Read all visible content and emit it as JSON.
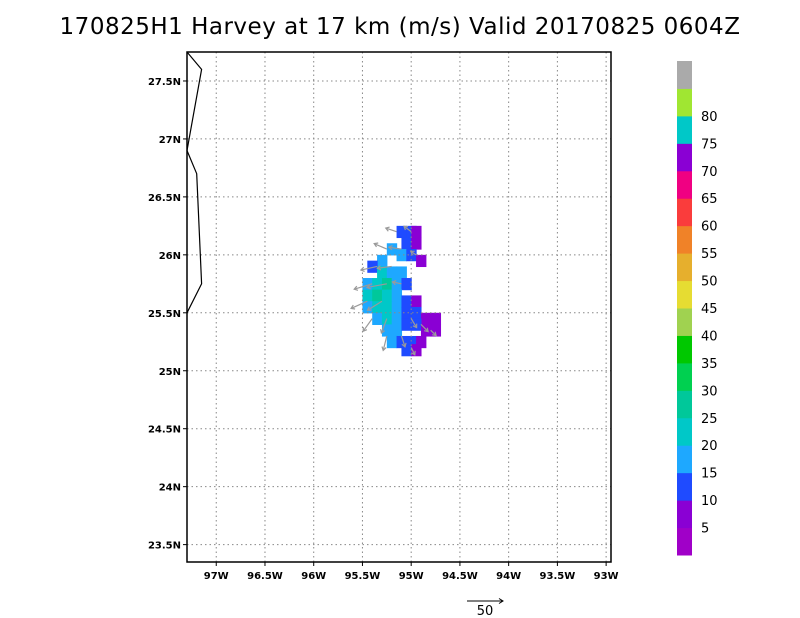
{
  "title": "170825H1 Harvey at 17 km (m/s) Valid 20170825 0604Z",
  "map": {
    "lon_range": [
      -97.3,
      -92.95
    ],
    "lat_range": [
      23.35,
      27.75
    ],
    "lat_labels": [
      "27.5N",
      "27N",
      "26.5N",
      "26N",
      "25.5N",
      "25N",
      "24.5N",
      "24N",
      "23.5N"
    ],
    "lat_values": [
      27.5,
      27.0,
      26.5,
      26.0,
      25.5,
      25.0,
      24.5,
      24.0,
      23.5
    ],
    "lon_labels": [
      "97W",
      "96.5W",
      "96W",
      "95.5W",
      "95W",
      "94.5W",
      "94W",
      "93.5W",
      "93W"
    ],
    "lon_values": [
      -97.0,
      -96.5,
      -96.0,
      -95.5,
      -95.0,
      -94.5,
      -94.0,
      -93.5,
      -93.0
    ],
    "coastline": [
      [
        -97.3,
        27.75
      ],
      [
        -97.15,
        27.6
      ],
      [
        -97.3,
        26.9
      ],
      [
        -97.2,
        26.7
      ],
      [
        -97.15,
        25.75
      ],
      [
        -97.3,
        25.5
      ]
    ],
    "grid": "dotted",
    "wind_cells": [
      {
        "lon": -95.1,
        "lat": 26.2,
        "color": "#1f4bff"
      },
      {
        "lon": -95.0,
        "lat": 26.2,
        "color": "#1f4bff"
      },
      {
        "lon": -94.95,
        "lat": 26.2,
        "color": "#8a00d4"
      },
      {
        "lon": -95.05,
        "lat": 26.1,
        "color": "#1f4bff"
      },
      {
        "lon": -94.95,
        "lat": 26.1,
        "color": "#8a00d4"
      },
      {
        "lon": -95.2,
        "lat": 26.05,
        "color": "#1ea8ff"
      },
      {
        "lon": -95.1,
        "lat": 26.0,
        "color": "#1ea8ff"
      },
      {
        "lon": -95.0,
        "lat": 26.0,
        "color": "#1f4bff"
      },
      {
        "lon": -94.9,
        "lat": 25.95,
        "color": "#8a00d4"
      },
      {
        "lon": -95.3,
        "lat": 25.95,
        "color": "#1ea8ff"
      },
      {
        "lon": -95.4,
        "lat": 25.9,
        "color": "#1f4bff"
      },
      {
        "lon": -95.3,
        "lat": 25.85,
        "color": "#00c8c8"
      },
      {
        "lon": -95.2,
        "lat": 25.85,
        "color": "#1ea8ff"
      },
      {
        "lon": -95.1,
        "lat": 25.85,
        "color": "#1ea8ff"
      },
      {
        "lon": -95.45,
        "lat": 25.75,
        "color": "#1ea8ff"
      },
      {
        "lon": -95.35,
        "lat": 25.75,
        "color": "#00c8c8"
      },
      {
        "lon": -95.25,
        "lat": 25.75,
        "color": "#00c89a"
      },
      {
        "lon": -95.15,
        "lat": 25.75,
        "color": "#1ea8ff"
      },
      {
        "lon": -95.05,
        "lat": 25.75,
        "color": "#1f4bff"
      },
      {
        "lon": -95.45,
        "lat": 25.65,
        "color": "#00c8c8"
      },
      {
        "lon": -95.35,
        "lat": 25.65,
        "color": "#00c89a"
      },
      {
        "lon": -95.25,
        "lat": 25.65,
        "color": "#00c8c8"
      },
      {
        "lon": -95.15,
        "lat": 25.65,
        "color": "#1ea8ff"
      },
      {
        "lon": -95.45,
        "lat": 25.55,
        "color": "#1ea8ff"
      },
      {
        "lon": -95.35,
        "lat": 25.55,
        "color": "#00c8c8"
      },
      {
        "lon": -95.25,
        "lat": 25.55,
        "color": "#00c8c8"
      },
      {
        "lon": -95.15,
        "lat": 25.55,
        "color": "#1ea8ff"
      },
      {
        "lon": -95.05,
        "lat": 25.6,
        "color": "#1f4bff"
      },
      {
        "lon": -94.95,
        "lat": 25.6,
        "color": "#8a00d4"
      },
      {
        "lon": -95.35,
        "lat": 25.45,
        "color": "#1ea8ff"
      },
      {
        "lon": -95.25,
        "lat": 25.45,
        "color": "#00c8c8"
      },
      {
        "lon": -95.15,
        "lat": 25.45,
        "color": "#1ea8ff"
      },
      {
        "lon": -95.05,
        "lat": 25.5,
        "color": "#1f4bff"
      },
      {
        "lon": -94.95,
        "lat": 25.5,
        "color": "#1f4bff"
      },
      {
        "lon": -94.85,
        "lat": 25.45,
        "color": "#8a00d4"
      },
      {
        "lon": -94.75,
        "lat": 25.45,
        "color": "#8a00d4"
      },
      {
        "lon": -95.25,
        "lat": 25.35,
        "color": "#1ea8ff"
      },
      {
        "lon": -95.15,
        "lat": 25.35,
        "color": "#1ea8ff"
      },
      {
        "lon": -95.05,
        "lat": 25.4,
        "color": "#1f4bff"
      },
      {
        "lon": -94.95,
        "lat": 25.4,
        "color": "#1f4bff"
      },
      {
        "lon": -94.85,
        "lat": 25.35,
        "color": "#8a00d4"
      },
      {
        "lon": -94.75,
        "lat": 25.35,
        "color": "#8a00d4"
      },
      {
        "lon": -95.2,
        "lat": 25.25,
        "color": "#1ea8ff"
      },
      {
        "lon": -95.1,
        "lat": 25.25,
        "color": "#1f4bff"
      },
      {
        "lon": -95.0,
        "lat": 25.25,
        "color": "#1f4bff"
      },
      {
        "lon": -94.9,
        "lat": 25.25,
        "color": "#8a00d4"
      },
      {
        "lon": -95.05,
        "lat": 25.18,
        "color": "#1f4bff"
      },
      {
        "lon": -94.95,
        "lat": 25.18,
        "color": "#8a00d4"
      }
    ],
    "wind_cell_size_deg": [
      0.1,
      0.1
    ],
    "wind_vectors": [
      {
        "lon": -95.15,
        "lat": 26.2,
        "u": -12,
        "v": 4
      },
      {
        "lon": -95.0,
        "lat": 26.2,
        "u": -8,
        "v": 6
      },
      {
        "lon": -95.25,
        "lat": 26.05,
        "u": -14,
        "v": 6
      },
      {
        "lon": -95.1,
        "lat": 26.05,
        "u": -14,
        "v": 2
      },
      {
        "lon": -95.35,
        "lat": 25.9,
        "u": -18,
        "v": -4
      },
      {
        "lon": -95.2,
        "lat": 25.9,
        "u": -16,
        "v": -2
      },
      {
        "lon": -95.4,
        "lat": 25.75,
        "u": -20,
        "v": -6
      },
      {
        "lon": -95.25,
        "lat": 25.75,
        "u": -22,
        "v": -4
      },
      {
        "lon": -95.1,
        "lat": 25.75,
        "u": -10,
        "v": 2
      },
      {
        "lon": -95.45,
        "lat": 25.6,
        "u": -18,
        "v": -8
      },
      {
        "lon": -95.3,
        "lat": 25.6,
        "u": -16,
        "v": -10
      },
      {
        "lon": -95.4,
        "lat": 25.45,
        "u": -10,
        "v": -14
      },
      {
        "lon": -95.25,
        "lat": 25.45,
        "u": -6,
        "v": -16
      },
      {
        "lon": -95.25,
        "lat": 25.3,
        "u": -4,
        "v": -16
      },
      {
        "lon": -95.1,
        "lat": 25.3,
        "u": 4,
        "v": -12
      },
      {
        "lon": -95.0,
        "lat": 25.45,
        "u": 6,
        "v": -10
      },
      {
        "lon": -94.9,
        "lat": 25.4,
        "u": 8,
        "v": -8
      },
      {
        "lon": -94.8,
        "lat": 25.35,
        "u": 6,
        "v": -6
      },
      {
        "lon": -95.0,
        "lat": 25.2,
        "u": 4,
        "v": -8
      },
      {
        "lon": -94.95,
        "lat": 26.0,
        "u": -6,
        "v": 4
      }
    ],
    "reference_vector": {
      "label": "50",
      "magnitude": 50
    }
  },
  "colorbar": {
    "colors": [
      "#a000c8",
      "#8a00d4",
      "#1f4bff",
      "#1ea8ff",
      "#00c8c8",
      "#00c89a",
      "#00d050",
      "#00c800",
      "#a0d250",
      "#e6dc32",
      "#e6af2d",
      "#f08228",
      "#fa3c3c",
      "#f00082",
      "#8a00d4",
      "#00c8c8",
      "#a0e632",
      "#aaaaaa"
    ],
    "labels": [
      "5",
      "10",
      "15",
      "20",
      "25",
      "30",
      "35",
      "40",
      "45",
      "50",
      "55",
      "60",
      "65",
      "70",
      "75",
      "80"
    ]
  }
}
